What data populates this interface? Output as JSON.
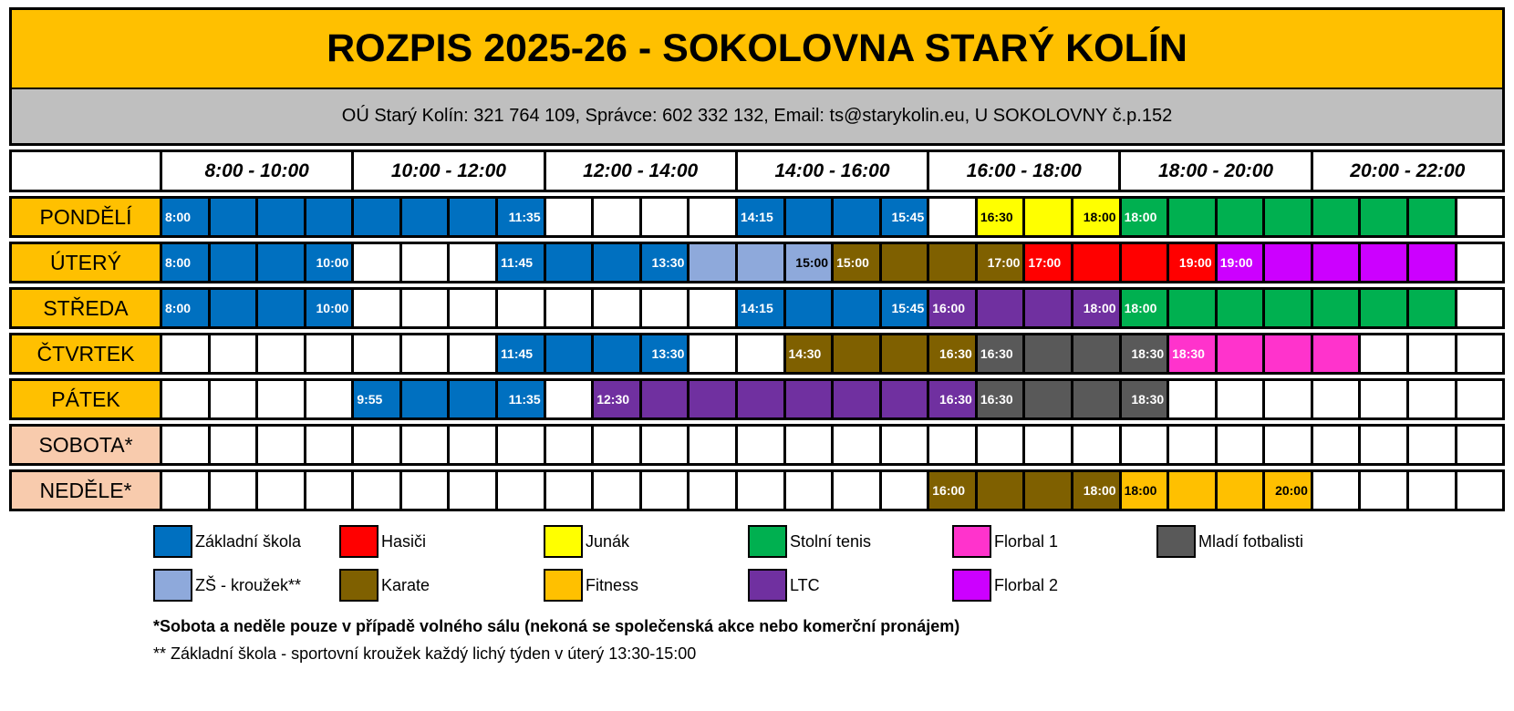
{
  "title": "ROZPIS 2025-26 - SOKOLOVNA STARÝ KOLÍN",
  "subtitle": "OÚ Starý Kolín: 321 764 109, Správce: 602 332 132, Email: ts@starykolin.eu, U SOKOLOVNY č.p.152",
  "time_blocks": [
    "8:00 - 10:00",
    "10:00 - 12:00",
    "12:00 - 14:00",
    "14:00 - 16:00",
    "16:00 - 18:00",
    "18:00 - 20:00",
    "20:00 - 22:00"
  ],
  "colors": {
    "ZS": "#0070C0",
    "ZSK": "#8EA9DB",
    "HAS": "#FF0000",
    "KAR": "#7F6000",
    "JUN": "#FFFF00",
    "FIT": "#FFC000",
    "STE": "#00B050",
    "LTC": "#7030A0",
    "FL1": "#FF33CC",
    "FL2": "#CC00FF",
    "MLF": "#595959",
    "W": "#FFFFFF",
    "day_label": "#FFC000",
    "weekend_label": "#F8CBAD",
    "title_bg": "#FFC000",
    "subtitle_bg": "#BFBFBF"
  },
  "dark_text_on": [
    "JUN",
    "FIT",
    "ZSK",
    "W"
  ],
  "days": [
    {
      "id": "pondeli",
      "label": "PONDĚLÍ",
      "weekend": false,
      "segments": [
        {
          "c": "ZS",
          "n": 8,
          "s": "8:00",
          "e": "11:35"
        },
        {
          "c": "W",
          "n": 4
        },
        {
          "c": "ZS",
          "n": 4,
          "s": "14:15",
          "e": "15:45"
        },
        {
          "c": "W",
          "n": 1
        },
        {
          "c": "JUN",
          "n": 3,
          "s": "16:30",
          "e": "18:00"
        },
        {
          "c": "STE",
          "n": 7,
          "s": "18:00"
        },
        {
          "c": "W",
          "n": 1
        }
      ]
    },
    {
      "id": "utery",
      "label": "ÚTERÝ",
      "weekend": false,
      "segments": [
        {
          "c": "ZS",
          "n": 4,
          "s": "8:00",
          "e": "10:00"
        },
        {
          "c": "W",
          "n": 3
        },
        {
          "c": "ZS",
          "n": 4,
          "s": "11:45",
          "e": "13:30"
        },
        {
          "c": "ZSK",
          "n": 3,
          "e": "15:00"
        },
        {
          "c": "KAR",
          "n": 4,
          "s": "15:00",
          "e": "17:00"
        },
        {
          "c": "HAS",
          "n": 4,
          "s": "17:00",
          "e": "19:00"
        },
        {
          "c": "FL2",
          "n": 5,
          "s": "19:00"
        },
        {
          "c": "W",
          "n": 1
        }
      ]
    },
    {
      "id": "streda",
      "label": "STŘEDA",
      "weekend": false,
      "segments": [
        {
          "c": "ZS",
          "n": 4,
          "s": "8:00",
          "e": "10:00"
        },
        {
          "c": "W",
          "n": 8
        },
        {
          "c": "ZS",
          "n": 4,
          "s": "14:15",
          "e": "15:45"
        },
        {
          "c": "LTC",
          "n": 4,
          "s": "16:00",
          "e": "18:00"
        },
        {
          "c": "STE",
          "n": 7,
          "s": "18:00"
        },
        {
          "c": "W",
          "n": 1
        }
      ]
    },
    {
      "id": "ctvrtek",
      "label": "ČTVRTEK",
      "weekend": false,
      "segments": [
        {
          "c": "W",
          "n": 7
        },
        {
          "c": "ZS",
          "n": 4,
          "s": "11:45",
          "e": "13:30"
        },
        {
          "c": "W",
          "n": 2
        },
        {
          "c": "KAR",
          "n": 4,
          "s": "14:30",
          "e": "16:30"
        },
        {
          "c": "MLF",
          "n": 4,
          "s": "16:30",
          "e": "18:30"
        },
        {
          "c": "FL1",
          "n": 4,
          "s": "18:30"
        },
        {
          "c": "W",
          "n": 3
        }
      ]
    },
    {
      "id": "patek",
      "label": "PÁTEK",
      "weekend": false,
      "segments": [
        {
          "c": "W",
          "n": 4
        },
        {
          "c": "ZS",
          "n": 4,
          "s": "9:55",
          "e": "11:35"
        },
        {
          "c": "W",
          "n": 1
        },
        {
          "c": "LTC",
          "n": 8,
          "s": "12:30",
          "e": "16:30"
        },
        {
          "c": "MLF",
          "n": 4,
          "s": "16:30",
          "e": "18:30"
        },
        {
          "c": "W",
          "n": 7
        }
      ]
    },
    {
      "id": "sobota",
      "label": "SOBOTA*",
      "weekend": true,
      "segments": [
        {
          "c": "W",
          "n": 28
        }
      ]
    },
    {
      "id": "nedele",
      "label": "NEDĚLE*",
      "weekend": true,
      "segments": [
        {
          "c": "W",
          "n": 16
        },
        {
          "c": "KAR",
          "n": 4,
          "s": "16:00",
          "e": "18:00"
        },
        {
          "c": "FIT",
          "n": 4,
          "s": "18:00",
          "e": "20:00"
        },
        {
          "c": "W",
          "n": 4
        }
      ]
    }
  ],
  "legend": {
    "rows": [
      [
        {
          "key": "ZS",
          "label": "Základní škola"
        },
        {
          "key": "HAS",
          "label": "Hasiči"
        },
        {
          "key": "JUN",
          "label": "Junák"
        },
        {
          "key": "STE",
          "label": "Stolní tenis"
        },
        {
          "key": "FL1",
          "label": "Florbal 1"
        },
        {
          "key": "MLF",
          "label": "Mladí fotbalisti"
        }
      ],
      [
        {
          "key": "ZSK",
          "label": "ZŠ - kroužek**"
        },
        {
          "key": "KAR",
          "label": "Karate"
        },
        {
          "key": "FIT",
          "label": "Fitness"
        },
        {
          "key": "LTC",
          "label": "LTC"
        },
        {
          "key": "FL2",
          "label": "Florbal 2"
        }
      ]
    ]
  },
  "footnotes": [
    "*Sobota a neděle pouze v případě volného sálu (nekoná se společenská akce nebo komerční pronájem)",
    "** Základní škola - sportovní kroužek každý lichý týden v úterý 13:30-15:00"
  ]
}
